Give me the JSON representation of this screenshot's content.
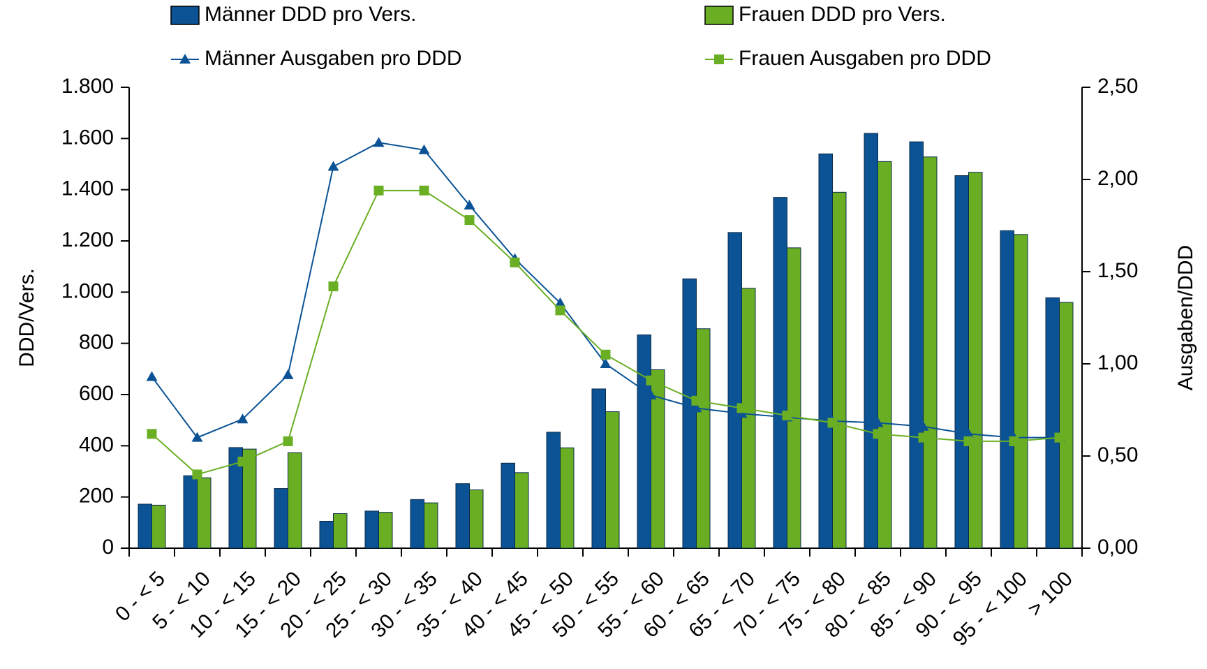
{
  "chart_data": {
    "type": "bar",
    "y_label": "DDD/Vers.",
    "y2_label": "Ausgaben/DDD",
    "categories": [
      "0 - < 5",
      "5 - < 10",
      "10 - < 15",
      "15 - < 20",
      "20 - < 25",
      "25 - < 30",
      "30 - < 35",
      "35 - < 40",
      "40 - < 45",
      "45 - < 50",
      "50 - < 55",
      "55 - < 60",
      "60 - < 65",
      "65 - < 70",
      "70 - < 75",
      "75 - < 80",
      "80 - < 85",
      "85 - < 90",
      "90 - < 95",
      "95 - < 100",
      "> 100"
    ],
    "series": [
      {
        "name": "Männer DDD pro Vers.",
        "type": "bar",
        "color": "#0b5394",
        "axis": "y",
        "values": [
          172,
          283,
          393,
          233,
          105,
          145,
          190,
          252,
          332,
          453,
          622,
          833,
          1052,
          1233,
          1370,
          1540,
          1620,
          1587,
          1455,
          1240,
          978
        ]
      },
      {
        "name": "Frauen DDD pro Vers.",
        "type": "bar",
        "color": "#6aaf23",
        "axis": "y",
        "values": [
          168,
          275,
          387,
          373,
          135,
          140,
          177,
          228,
          295,
          392,
          533,
          697,
          857,
          1015,
          1173,
          1390,
          1510,
          1528,
          1468,
          1225,
          960
        ]
      },
      {
        "name": "Männer Ausgaben pro DDD",
        "type": "line",
        "color": "#0b5394",
        "axis": "y2",
        "marker": "triangle",
        "values": [
          0.93,
          0.6,
          0.7,
          0.94,
          2.07,
          2.2,
          2.16,
          1.86,
          1.57,
          1.33,
          1.0,
          0.83,
          0.76,
          0.73,
          0.71,
          0.69,
          0.68,
          0.66,
          0.62,
          0.6,
          0.6
        ]
      },
      {
        "name": "Frauen Ausgaben pro DDD",
        "type": "line",
        "color": "#6aaf23",
        "axis": "y2",
        "marker": "square",
        "values": [
          0.62,
          0.4,
          0.47,
          0.58,
          1.42,
          1.94,
          1.94,
          1.78,
          1.55,
          1.29,
          1.05,
          0.91,
          0.8,
          0.76,
          0.72,
          0.68,
          0.62,
          0.6,
          0.58,
          0.58,
          0.6
        ]
      }
    ],
    "ylim": [
      0,
      1800
    ],
    "yticks": [
      0,
      200,
      400,
      600,
      800,
      {
        "value": 1000,
        "label": "1.000"
      },
      {
        "value": 1200,
        "label": "1.200"
      },
      {
        "value": 1400,
        "label": "1.400"
      },
      {
        "value": 1600,
        "label": "1.600"
      },
      {
        "value": 1800,
        "label": "1.800"
      }
    ],
    "y2lim": [
      0,
      2.5
    ],
    "y2ticks": [
      {
        "value": 0,
        "label": "0,00"
      },
      {
        "value": 0.5,
        "label": "0,50"
      },
      {
        "value": 1,
        "label": "1,00"
      },
      {
        "value": 1.5,
        "label": "1,50"
      },
      {
        "value": 2,
        "label": "2,00"
      },
      {
        "value": 2.5,
        "label": "2,50"
      }
    ],
    "grid": false
  }
}
